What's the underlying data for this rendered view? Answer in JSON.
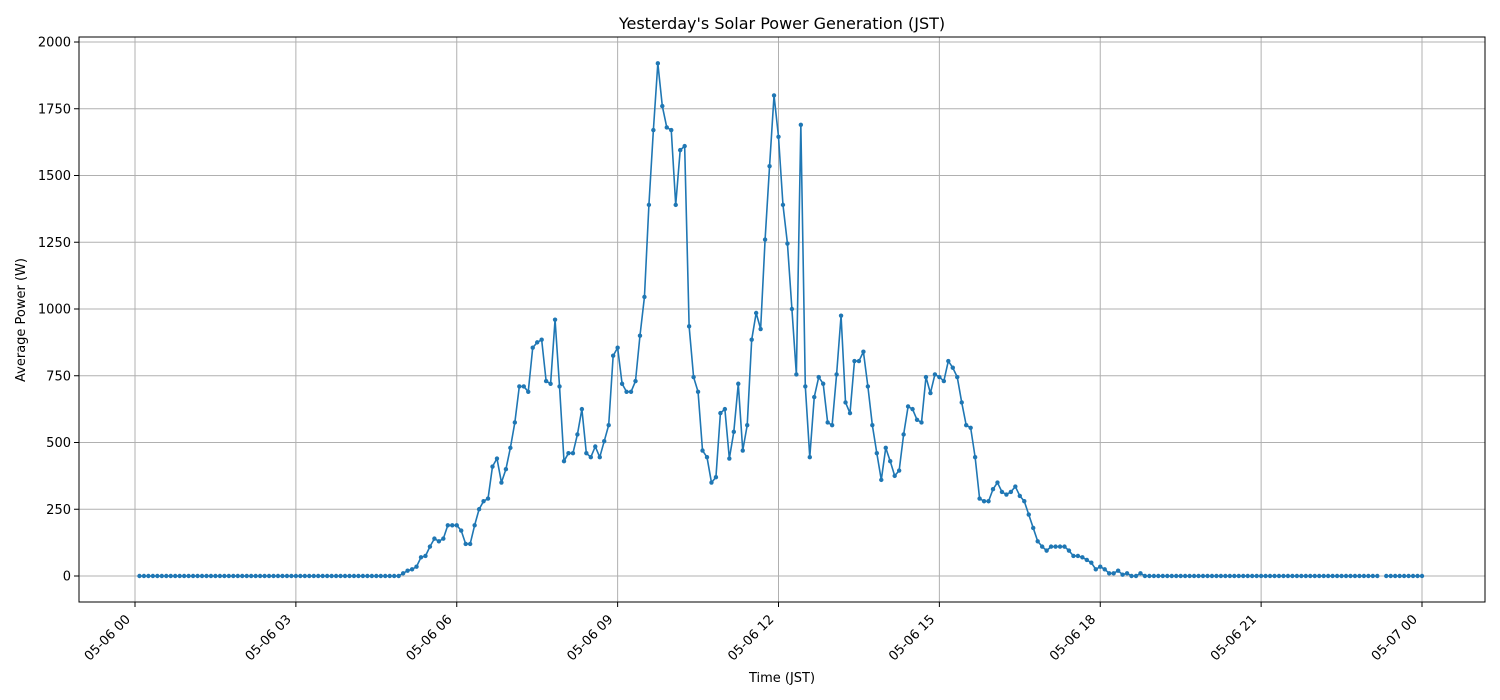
{
  "chart_data": {
    "type": "line",
    "title": "Yesterday's Solar Power Generation (JST)",
    "xlabel": "Time (JST)",
    "ylabel": "Average Power (W)",
    "xlim": [
      "05-06 00",
      "05-07 00"
    ],
    "ylim": [
      -100,
      2020
    ],
    "grid": true,
    "line_color": "#1f77b4",
    "x_ticks": [
      "05-06 00",
      "05-06 03",
      "05-06 06",
      "05-06 09",
      "05-06 12",
      "05-06 15",
      "05-06 18",
      "05-06 21",
      "05-07 00"
    ],
    "y_ticks": [
      "0",
      "250",
      "500",
      "750",
      "1000",
      "1250",
      "1500",
      "1750",
      "2000"
    ],
    "x_start": "05-06 00:00",
    "x_step_minutes": 5,
    "series": [
      {
        "values": [
          null,
          0,
          0,
          0,
          0,
          0,
          0,
          0,
          0,
          0,
          0,
          0,
          0,
          0,
          0,
          0,
          0,
          0,
          0,
          0,
          0,
          0,
          0,
          0,
          0,
          0,
          0,
          0,
          0,
          0,
          0,
          0,
          0,
          0,
          0,
          0,
          0,
          0,
          0,
          0,
          0,
          0,
          0,
          0,
          0,
          0,
          0,
          0,
          0,
          0,
          0,
          0,
          0,
          0,
          0,
          0,
          0,
          0,
          0,
          0,
          10,
          20,
          25,
          35,
          70,
          75,
          110,
          140,
          130,
          140,
          190,
          190,
          190,
          170,
          120,
          120,
          190,
          250,
          280,
          290,
          410,
          440,
          350,
          400,
          480,
          575,
          710,
          710,
          690,
          855,
          875,
          885,
          730,
          720,
          960,
          710,
          430,
          460,
          460,
          530,
          625,
          460,
          445,
          485,
          445,
          505,
          565,
          825,
          855,
          720,
          690,
          690,
          730,
          900,
          1045,
          1390,
          1670,
          1920,
          1760,
          1680,
          1670,
          1390,
          1595,
          1610,
          935,
          745,
          690,
          470,
          445,
          350,
          370,
          610,
          625,
          440,
          540,
          720,
          470,
          565,
          885,
          985,
          925,
          1260,
          1535,
          1800,
          1645,
          1390,
          1245,
          1000,
          755,
          1690,
          710,
          445,
          670,
          745,
          720,
          575,
          565,
          755,
          975,
          650,
          610,
          805,
          805,
          840,
          710,
          565,
          460,
          360,
          480,
          430,
          375,
          395,
          530,
          635,
          625,
          585,
          575,
          745,
          685,
          755,
          745,
          730,
          805,
          780,
          745,
          650,
          565,
          555,
          445,
          290,
          280,
          280,
          325,
          350,
          315,
          305,
          315,
          335,
          300,
          280,
          230,
          180,
          130,
          110,
          95,
          110,
          110,
          110,
          110,
          95,
          75,
          75,
          70,
          60,
          50,
          25,
          35,
          25,
          10,
          10,
          20,
          5,
          10,
          0,
          0,
          10,
          0,
          0,
          0,
          0,
          0,
          0,
          0,
          0,
          0,
          0,
          0,
          0,
          0,
          0,
          0,
          0,
          0,
          0,
          0,
          0,
          0,
          0,
          0,
          0,
          0,
          0,
          0,
          0,
          0,
          0,
          0,
          0,
          0,
          0,
          0,
          0,
          0,
          0,
          0,
          0,
          0,
          0,
          0,
          0,
          0,
          0,
          0,
          0,
          0,
          0,
          0,
          0,
          0,
          null,
          0,
          0,
          0,
          0,
          0,
          0,
          0,
          0,
          0
        ]
      }
    ]
  }
}
